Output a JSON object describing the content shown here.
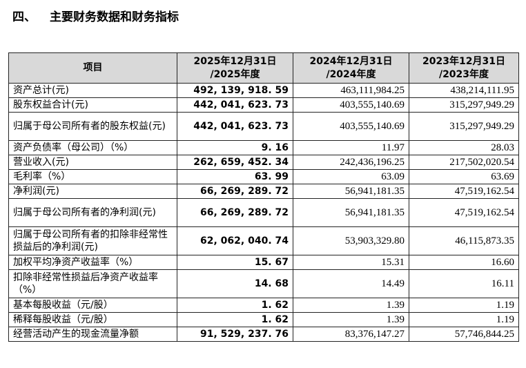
{
  "section": {
    "number": "四、",
    "title": "主要财务数据和财务指标"
  },
  "table": {
    "headers": {
      "item": "项目",
      "col2025": "2025年12月31日 /2025年度",
      "col2024": "2024年12月31日 /2024年度",
      "col2023": "2023年12月31日 /2023年度"
    },
    "rows": [
      {
        "label": "资产总计(元)",
        "v2025": "492, 139, 918. 59",
        "v2024": "463,111,984.25",
        "v2023": "438,214,111.95"
      },
      {
        "label": "股东权益合计(元)",
        "v2025": "442, 041, 623. 73",
        "v2024": "403,555,140.69",
        "v2023": "315,297,949.29"
      },
      {
        "label": "归属于母公司所有者的股东权益(元)",
        "v2025": "442, 041, 623. 73",
        "v2024": "403,555,140.69",
        "v2023": "315,297,949.29"
      },
      {
        "label": "资产负债率（母公司）（%）",
        "v2025": "9. 16",
        "v2024": "11.97",
        "v2023": "28.03"
      },
      {
        "label": "营业收入(元)",
        "v2025": "262, 659, 452. 34",
        "v2024": "242,436,196.25",
        "v2023": "217,502,020.54"
      },
      {
        "label": "毛利率（%）",
        "v2025": "63. 99",
        "v2024": "63.09",
        "v2023": "63.69"
      },
      {
        "label": "净利润(元)",
        "v2025": "66, 269, 289. 72",
        "v2024": "56,941,181.35",
        "v2023": "47,519,162.54"
      },
      {
        "label": "归属于母公司所有者的净利润(元)",
        "v2025": "66, 269, 289. 72",
        "v2024": "56,941,181.35",
        "v2023": "47,519,162.54"
      },
      {
        "label": "归属于母公司所有者的扣除非经常性损益后的净利润(元)",
        "v2025": "62, 062, 040. 74",
        "v2024": "53,903,329.80",
        "v2023": "46,115,873.35"
      },
      {
        "label": "加权平均净资产收益率（%）",
        "v2025": "15. 67",
        "v2024": "15.31",
        "v2023": "16.60"
      },
      {
        "label": "扣除非经常性损益后净资产收益率（%）",
        "v2025": "14. 68",
        "v2024": "14.49",
        "v2023": "16.11"
      },
      {
        "label": "基本每股收益（元/股）",
        "v2025": "1. 62",
        "v2024": "1.39",
        "v2023": "1.19"
      },
      {
        "label": "稀释每股收益（元/股）",
        "v2025": "1. 62",
        "v2024": "1.39",
        "v2023": "1.19"
      },
      {
        "label": "经营活动产生的现金流量净额",
        "v2025": "91, 529, 237. 76",
        "v2024": "83,376,147.27",
        "v2023": "57,746,844.25"
      }
    ]
  }
}
